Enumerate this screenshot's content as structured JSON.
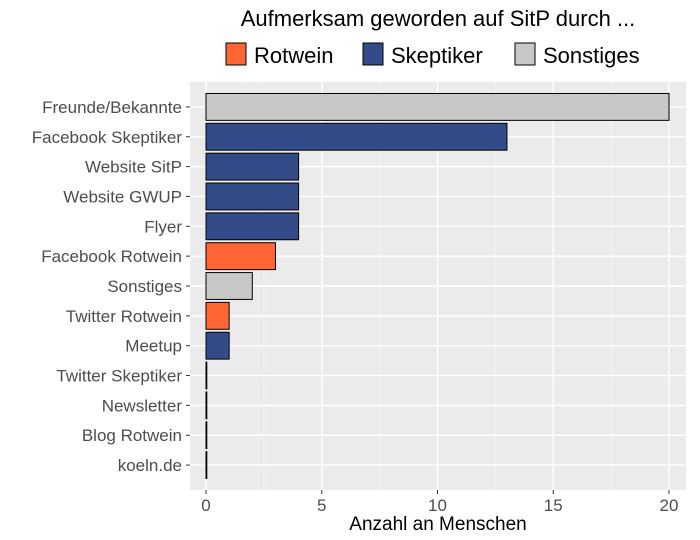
{
  "chart_data": {
    "type": "bar",
    "orientation": "horizontal",
    "title": "Aufmerksam geworden auf SitP durch ...",
    "xlabel": "Anzahl an Menschen",
    "ylabel": "",
    "xlim": [
      0,
      20
    ],
    "x_ticks": [
      0,
      5,
      10,
      15,
      20
    ],
    "grid": true,
    "legend_position": "top",
    "legend": [
      {
        "name": "Rotwein",
        "color": "#FF6633"
      },
      {
        "name": "Skeptiker",
        "color": "#344B8A"
      },
      {
        "name": "Sonstiges",
        "color": "#C8C8C8"
      }
    ],
    "categories": [
      "Freunde/Bekannte",
      "Facebook Skeptiker",
      "Website SitP",
      "Website GWUP",
      "Flyer",
      "Facebook Rotwein",
      "Sonstiges",
      "Twitter Rotwein",
      "Meetup",
      "Twitter Skeptiker",
      "Newsletter",
      "Blog Rotwein",
      "koeln.de"
    ],
    "values": [
      20,
      13,
      4,
      4,
      4,
      3,
      2,
      1,
      1,
      0,
      0,
      0,
      0
    ],
    "groups": [
      "Sonstiges",
      "Skeptiker",
      "Skeptiker",
      "Skeptiker",
      "Skeptiker",
      "Rotwein",
      "Sonstiges",
      "Rotwein",
      "Skeptiker",
      "Skeptiker",
      "Sonstiges",
      "Rotwein",
      "Sonstiges"
    ]
  }
}
